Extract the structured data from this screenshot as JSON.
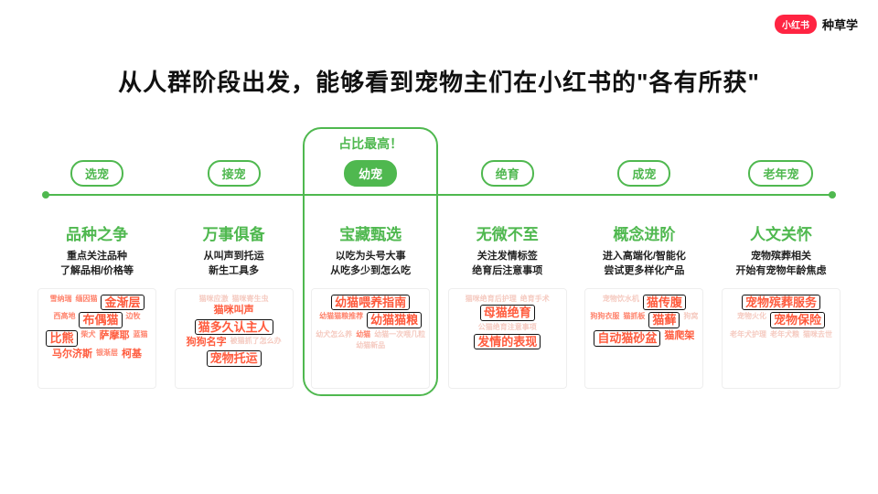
{
  "brand": {
    "badge": "小红书",
    "text": "种草学"
  },
  "title": "从人群阶段出发，能够看到宠物主们在小红书的\"各有所获\"",
  "highlight_caption": "占比最高！",
  "colors": {
    "accent": "#4fb84f",
    "brand_red": "#ff2442",
    "word_red": "#ff5a3c",
    "word_faint": "#f2b9ac",
    "box_black": "#111111",
    "bg": "#ffffff"
  },
  "stages": [
    {
      "label": "选宠",
      "headline": "品种之争",
      "sub": "重点关注品种\n了解品相/价格等",
      "highlight": false,
      "words": [
        {
          "t": "雪纳瑞",
          "size": "s"
        },
        {
          "t": "缅因猫",
          "size": "s"
        },
        {
          "t": "金渐层",
          "size": "l",
          "boxed": true
        },
        {
          "t": "西高地",
          "size": "s"
        },
        {
          "t": "布偶猫",
          "size": "l",
          "boxed": true
        },
        {
          "t": "边牧",
          "size": "s"
        },
        {
          "t": "比熊",
          "size": "l",
          "boxed": true
        },
        {
          "t": "柴犬",
          "size": "s"
        },
        {
          "t": "萨摩耶",
          "size": "m"
        },
        {
          "t": "蓝猫",
          "size": "s"
        },
        {
          "t": "马尔济斯",
          "size": "m"
        },
        {
          "t": "银渐层",
          "size": "s"
        },
        {
          "t": "柯基",
          "size": "m"
        }
      ]
    },
    {
      "label": "接宠",
      "headline": "万事俱备",
      "sub": "从叫声到托运\n新生工具多",
      "highlight": false,
      "words": [
        {
          "t": "猫咪应激",
          "size": "s",
          "faint": true
        },
        {
          "t": "猫咪寄生虫",
          "size": "s",
          "faint": true
        },
        {
          "t": "猫咪叫声",
          "size": "m"
        },
        {
          "t": "猫多久认主人",
          "size": "l",
          "boxed": true
        },
        {
          "t": "狗狗名字",
          "size": "m"
        },
        {
          "t": "被猫抓了怎么办",
          "size": "s",
          "faint": true
        },
        {
          "t": "宠物托运",
          "size": "l",
          "boxed": true
        }
      ]
    },
    {
      "label": "幼宠",
      "headline": "宝藏甄选",
      "sub": "以吃为头号大事\n从吃多少到怎么吃",
      "highlight": true,
      "words": [
        {
          "t": "幼猫喂养指南",
          "size": "l",
          "boxed": true
        },
        {
          "t": "幼猫猫粮推荐",
          "size": "s"
        },
        {
          "t": "幼猫猫粮",
          "size": "l",
          "boxed": true
        },
        {
          "t": "幼犬怎么养",
          "size": "s",
          "faint": true
        },
        {
          "t": "幼猫",
          "size": "s"
        },
        {
          "t": "幼猫一次喂几粒",
          "size": "s",
          "faint": true
        },
        {
          "t": "幼猫新品",
          "size": "s",
          "faint": true
        }
      ]
    },
    {
      "label": "绝育",
      "headline": "无微不至",
      "sub": "关注发情标签\n绝育后注意事项",
      "highlight": false,
      "words": [
        {
          "t": "猫咪绝育后护理",
          "size": "s",
          "faint": true
        },
        {
          "t": "绝育手术",
          "size": "s",
          "faint": true
        },
        {
          "t": "母猫绝育",
          "size": "l",
          "boxed": true
        },
        {
          "t": "公猫绝育注意事项",
          "size": "s",
          "faint": true
        },
        {
          "t": "发情的表现",
          "size": "l",
          "boxed": true
        }
      ]
    },
    {
      "label": "成宠",
      "headline": "概念进阶",
      "sub": "进入高端化/智能化\n尝试更多样化产品",
      "highlight": false,
      "words": [
        {
          "t": "宠物饮水机",
          "size": "s",
          "faint": true
        },
        {
          "t": "猫传腹",
          "size": "l",
          "boxed": true
        },
        {
          "t": "狗狗衣服",
          "size": "s"
        },
        {
          "t": "猫抓板",
          "size": "s"
        },
        {
          "t": "猫藓",
          "size": "l",
          "boxed": true
        },
        {
          "t": "狗窝",
          "size": "s",
          "faint": true
        },
        {
          "t": "自动猫砂盆",
          "size": "l",
          "boxed": true
        },
        {
          "t": "猫爬架",
          "size": "m"
        }
      ]
    },
    {
      "label": "老年宠",
      "headline": "人文关怀",
      "sub": "宠物殡葬相关\n开始有宠物年龄焦虑",
      "highlight": false,
      "words": [
        {
          "t": "宠物殡葬服务",
          "size": "l",
          "boxed": true
        },
        {
          "t": "宠物火化",
          "size": "s",
          "faint": true
        },
        {
          "t": "宠物保险",
          "size": "l",
          "boxed": true
        },
        {
          "t": "老年犬护理",
          "size": "s",
          "faint": true
        },
        {
          "t": "老年犬粮",
          "size": "s",
          "faint": true
        },
        {
          "t": "猫咪去世",
          "size": "s",
          "faint": true
        }
      ]
    }
  ]
}
